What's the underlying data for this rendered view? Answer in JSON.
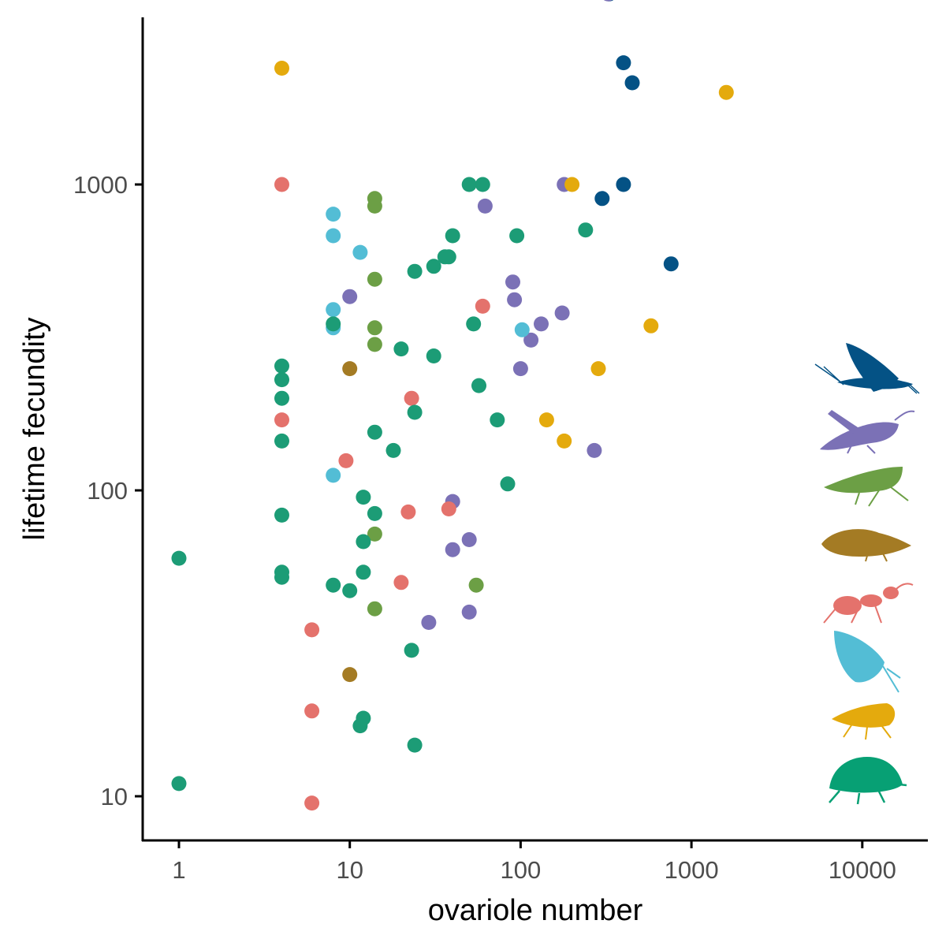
{
  "chart_data": {
    "type": "scatter",
    "title": "",
    "xlabel": "ovariole number",
    "ylabel": "lifetime fecundity",
    "xscale": "log10",
    "yscale": "log10",
    "xlim": [
      0.63,
      24000
    ],
    "ylim": [
      6.5,
      5200
    ],
    "xticks": [
      1,
      10,
      100,
      1000,
      10000
    ],
    "xtick_labels": [
      "1",
      "10",
      "100",
      "1000",
      "10000"
    ],
    "yticks": [
      10,
      100,
      1000
    ],
    "ytick_labels": [
      "10",
      "100",
      "1000"
    ],
    "grid": false,
    "legend": "insect silhouettes at right, one per color group (top to bottom: mayfly, grasshopper, leafhopper, bed bug, ant, butterfly, fly, beetle)",
    "series": [
      {
        "color": "#045285",
        "icon": "mayfly-icon",
        "points": [
          [
            330,
            4200
          ],
          [
            400,
            2500
          ],
          [
            450,
            2150
          ],
          [
            300,
            900
          ],
          [
            400,
            1000
          ],
          [
            760,
            550
          ]
        ]
      },
      {
        "color": "#7b71b6",
        "icon": "grasshopper-icon",
        "points": [
          [
            325,
            4200
          ],
          [
            180,
            1000
          ],
          [
            62,
            850
          ],
          [
            90,
            480
          ],
          [
            92,
            420
          ],
          [
            175,
            380
          ],
          [
            132,
            350
          ],
          [
            115,
            310
          ],
          [
            100,
            250
          ],
          [
            270,
            135
          ],
          [
            40,
            92
          ],
          [
            40,
            64
          ],
          [
            50,
            69
          ],
          [
            29,
            37
          ],
          [
            50,
            40
          ],
          [
            10,
            430
          ]
        ]
      },
      {
        "color": "#6c9f45",
        "icon": "leafhopper-icon",
        "points": [
          [
            14,
            900
          ],
          [
            14,
            850
          ],
          [
            14,
            490
          ],
          [
            14,
            340
          ],
          [
            14,
            300
          ],
          [
            14,
            72
          ],
          [
            14,
            41
          ],
          [
            55,
            49
          ]
        ]
      },
      {
        "color": "#a47b24",
        "icon": "bedbug-icon",
        "points": [
          [
            10,
            250
          ],
          [
            10,
            25
          ]
        ]
      },
      {
        "color": "#e4726c",
        "icon": "ant-icon",
        "points": [
          [
            4,
            1000
          ],
          [
            60,
            400
          ],
          [
            23,
            200
          ],
          [
            4,
            170
          ],
          [
            9.5,
            125
          ],
          [
            22,
            85
          ],
          [
            38,
            87
          ],
          [
            20,
            50
          ],
          [
            6,
            35
          ],
          [
            6,
            19
          ],
          [
            6,
            9.5
          ]
        ]
      },
      {
        "color": "#53bdd5",
        "icon": "butterfly-icon",
        "points": [
          [
            8,
            800
          ],
          [
            8,
            680
          ],
          [
            11.5,
            600
          ],
          [
            8,
            390
          ],
          [
            8,
            340
          ],
          [
            102,
            335
          ],
          [
            8,
            112
          ]
        ]
      },
      {
        "color": "#e4aa0d",
        "icon": "fly-icon",
        "points": [
          [
            4,
            2400
          ],
          [
            1600,
            2000
          ],
          [
            200,
            1000
          ],
          [
            580,
            345
          ],
          [
            285,
            250
          ],
          [
            142,
            170
          ],
          [
            180,
            145
          ]
        ]
      },
      {
        "color": "#1c9c76",
        "icon": "beetle-icon",
        "points": [
          [
            50,
            1000
          ],
          [
            60,
            1000
          ],
          [
            40,
            680
          ],
          [
            95,
            680
          ],
          [
            240,
            710
          ],
          [
            36,
            580
          ],
          [
            38,
            580
          ],
          [
            31,
            540
          ],
          [
            24,
            520
          ],
          [
            53,
            350
          ],
          [
            20,
            290
          ],
          [
            31,
            275
          ],
          [
            4,
            255
          ],
          [
            4,
            230
          ],
          [
            4,
            200
          ],
          [
            57,
            220
          ],
          [
            24,
            180
          ],
          [
            73,
            170
          ],
          [
            14,
            155
          ],
          [
            4,
            145
          ],
          [
            18,
            135
          ],
          [
            84,
            105
          ],
          [
            12,
            95
          ],
          [
            14,
            84
          ],
          [
            4,
            83
          ],
          [
            12,
            68
          ],
          [
            4,
            54
          ],
          [
            4,
            52
          ],
          [
            12,
            54
          ],
          [
            8,
            49
          ],
          [
            10,
            47
          ],
          [
            1,
            60
          ],
          [
            23,
            30
          ],
          [
            12,
            18
          ],
          [
            11.5,
            17
          ],
          [
            24,
            14.7
          ],
          [
            1,
            11
          ],
          [
            8,
            350
          ]
        ]
      }
    ]
  }
}
